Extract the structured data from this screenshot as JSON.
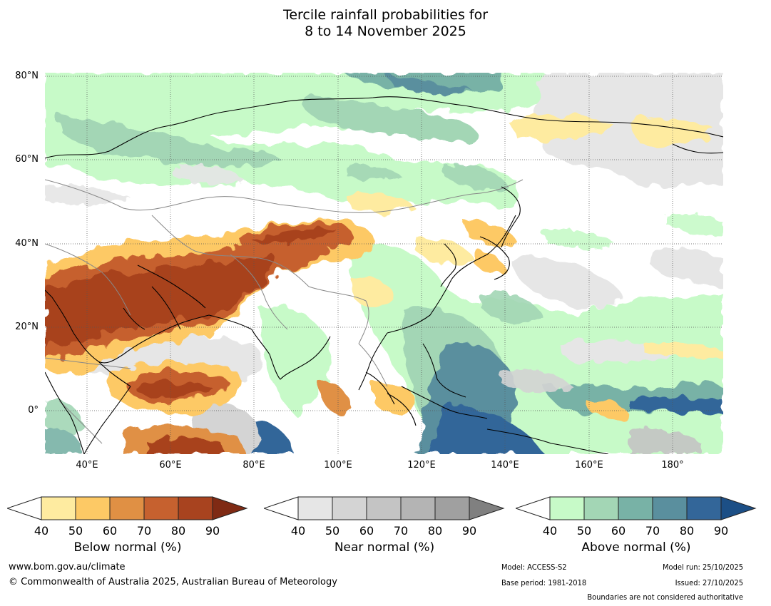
{
  "title": {
    "line1": "Tercile rainfall probabilities for",
    "line2": "8 to 14 November 2025"
  },
  "map": {
    "lat_labels": [
      "80°N",
      "60°N",
      "40°N",
      "20°N",
      "0°"
    ],
    "lon_labels": [
      "40°E",
      "60°E",
      "80°E",
      "100°E",
      "120°E",
      "140°E",
      "160°E",
      "180°"
    ]
  },
  "legends": [
    {
      "name": "below",
      "title": "Below normal (%)",
      "ticks": [
        "40",
        "50",
        "60",
        "70",
        "80",
        "90"
      ],
      "colors": [
        "#ffffff",
        "#feeba0",
        "#fdc965",
        "#e09044",
        "#c6612f",
        "#a8431f",
        "#7f2a14"
      ]
    },
    {
      "name": "near",
      "title": "Near normal (%)",
      "ticks": [
        "40",
        "50",
        "60",
        "70",
        "80",
        "90"
      ],
      "colors": [
        "#ffffff",
        "#e6e6e6",
        "#d4d4d4",
        "#c4c4c4",
        "#b4b4b4",
        "#a0a0a0",
        "#808080"
      ]
    },
    {
      "name": "above",
      "title": "Above normal (%)",
      "ticks": [
        "40",
        "50",
        "60",
        "70",
        "80",
        "90"
      ],
      "colors": [
        "#ffffff",
        "#c7fac8",
        "#a3d6b5",
        "#78b2a6",
        "#5a8f9e",
        "#336699",
        "#1c4f86"
      ]
    }
  ],
  "footer": {
    "url": "www.bom.gov.au/climate",
    "copyright": "© Commonwealth of Australia 2025, Australian Bureau of Meteorology",
    "model": "Model: ACCESS-S2",
    "base_period": "Base period: 1981-2018",
    "model_run": "Model run: 25/10/2025",
    "issued": "Issued: 27/10/2025",
    "boundaries": "Boundaries are not considered authoritative"
  }
}
